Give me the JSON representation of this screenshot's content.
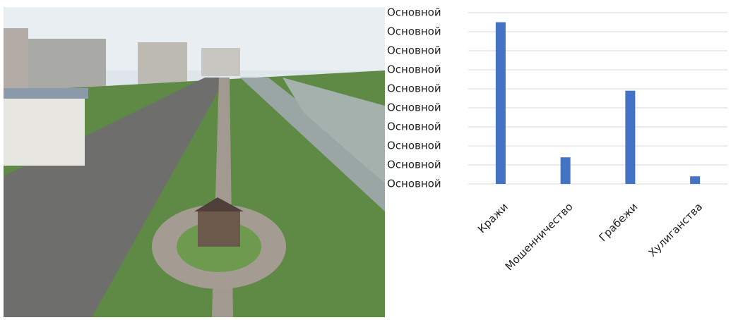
{
  "chart_data": {
    "type": "bar",
    "categories": [
      "Кражи",
      "Мошенничество",
      "Грабежи",
      "Хулиганства"
    ],
    "values": [
      8.5,
      1.4,
      4.9,
      0.4
    ],
    "color": "#4472c4",
    "ylim": [
      0,
      9
    ],
    "yticks": [
      {
        "value": 0,
        "label": "Основной"
      },
      {
        "value": 1,
        "label": "Основной"
      },
      {
        "value": 2,
        "label": "Основной"
      },
      {
        "value": 3,
        "label": "Основной"
      },
      {
        "value": 4,
        "label": "Основной"
      },
      {
        "value": 5,
        "label": "Основной"
      },
      {
        "value": 6,
        "label": "Основной"
      },
      {
        "value": 7,
        "label": "Основной"
      },
      {
        "value": 8,
        "label": "Основной"
      },
      {
        "value": 9,
        "label": "Основной"
      }
    ],
    "grid": true
  }
}
